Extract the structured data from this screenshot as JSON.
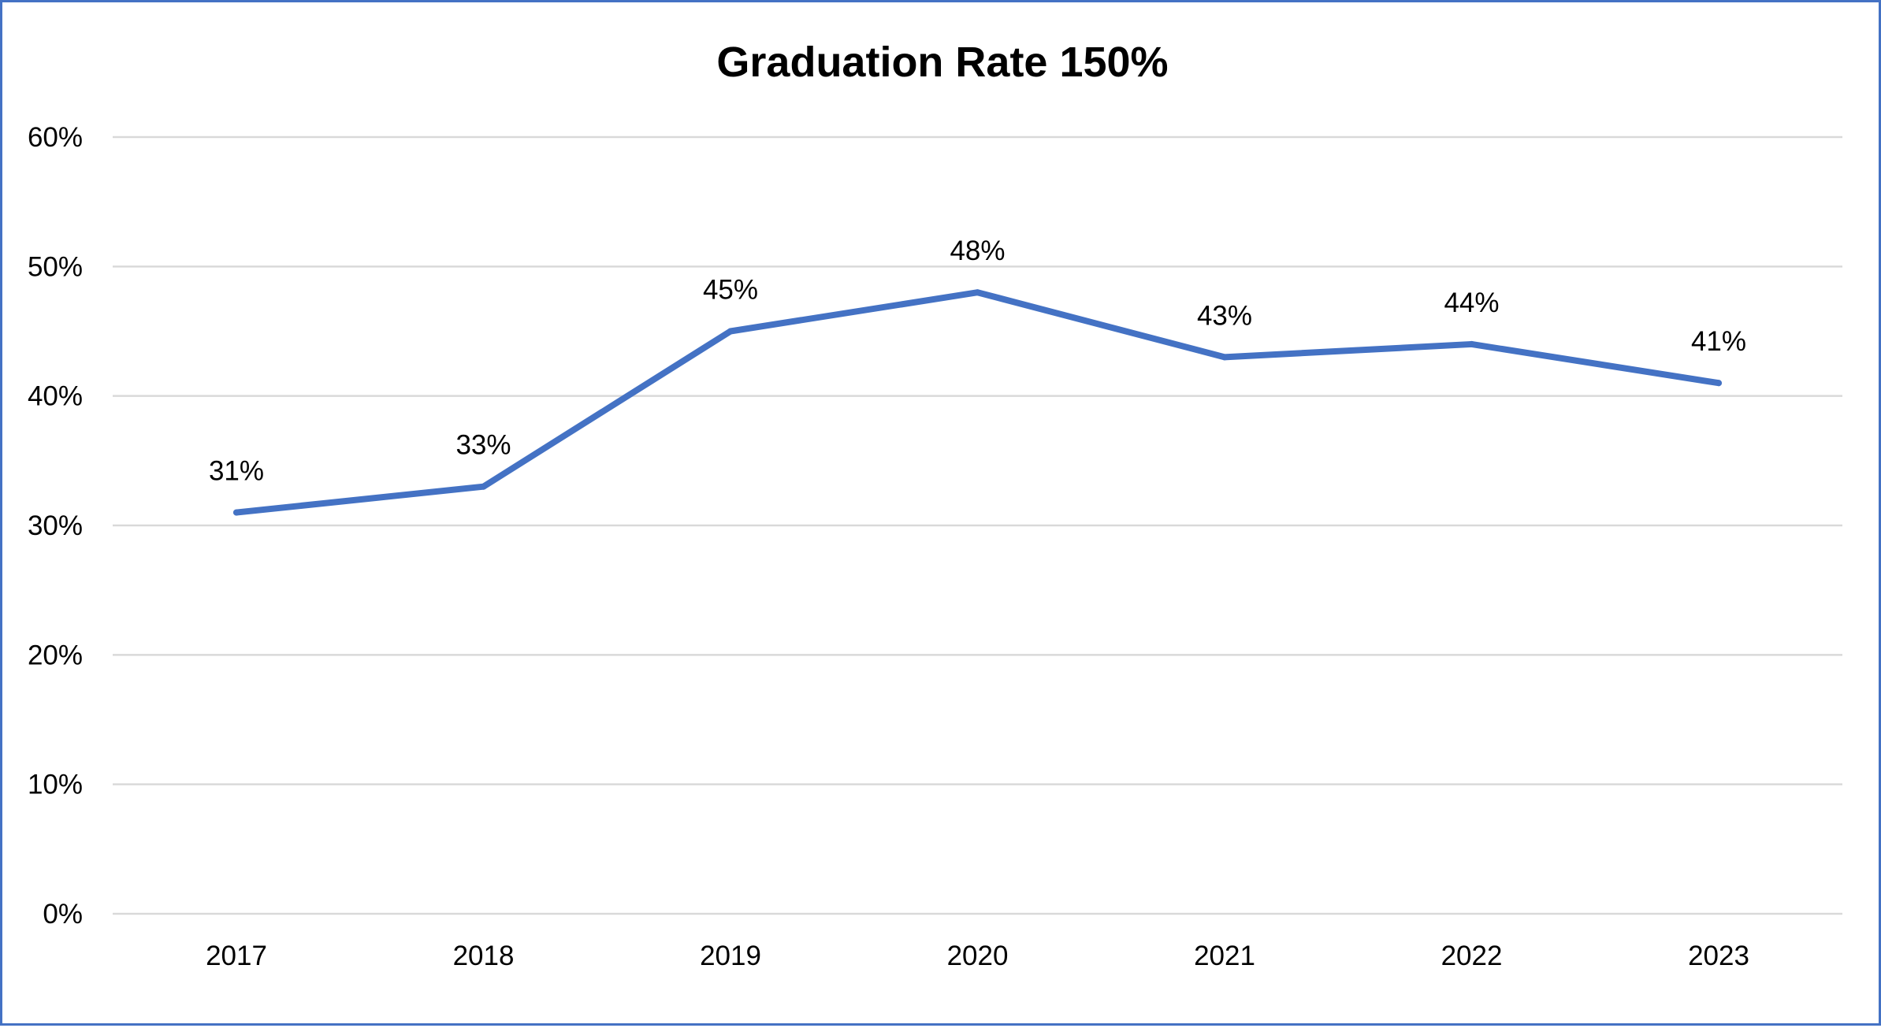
{
  "chart_data": {
    "type": "line",
    "title": "Graduation Rate 150%",
    "xlabel": "",
    "ylabel": "",
    "categories": [
      "2017",
      "2018",
      "2019",
      "2020",
      "2021",
      "2022",
      "2023"
    ],
    "series": [
      {
        "values": [
          31,
          33,
          45,
          48,
          43,
          44,
          41
        ]
      }
    ],
    "data_labels": [
      "31%",
      "33%",
      "45%",
      "48%",
      "43%",
      "44%",
      "41%"
    ],
    "ylim": [
      0,
      60
    ],
    "y_ticks": [
      0,
      10,
      20,
      30,
      40,
      50,
      60
    ],
    "y_tick_labels": [
      "0%",
      "10%",
      "20%",
      "30%",
      "40%",
      "50%",
      "60%"
    ],
    "grid": true,
    "legend": "none",
    "colors": {
      "series": "#4472c4",
      "grid": "#d9d9d9",
      "border": "#4472c4"
    }
  }
}
